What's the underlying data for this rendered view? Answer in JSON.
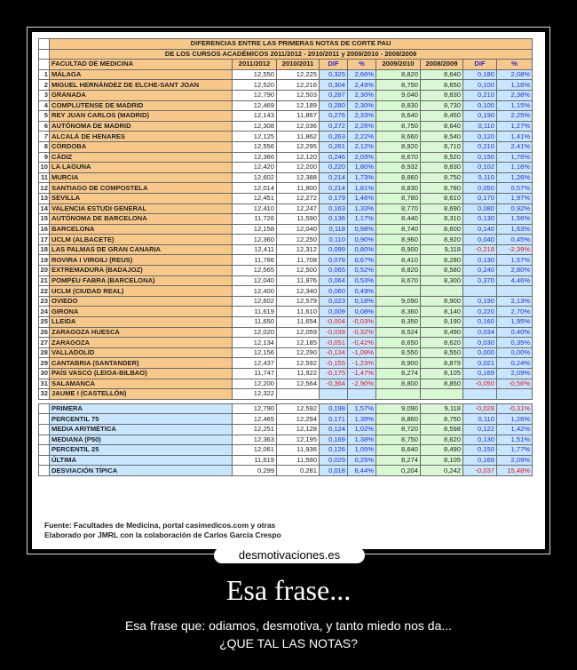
{
  "table": {
    "title_line1": "DIFERENCIAS ENTRE LAS PRIMERAS NOTAS DE CORTE PAU",
    "title_line2": "DE LOS CURSOS ACADÉMICOS  2011/2012 - 2010/2011 y 2009/2010 - 2008/2009",
    "headers": [
      "FACULTAD DE MEDICINA",
      "2011/2012",
      "2010/2011",
      "DIF",
      "%",
      "2009/2010",
      "2008/2009",
      "DIF",
      "%"
    ],
    "rows": [
      [
        "1",
        "MÁLAGA",
        "12,550",
        "12,225",
        "0,325",
        "2,66%",
        "8,820",
        "8,640",
        "0,180",
        "2,08%"
      ],
      [
        "2",
        "MIGUEL HERNÁNDEZ DE ELCHE-SANT JOAN",
        "12,520",
        "12,216",
        "0,304",
        "2,49%",
        "8,750",
        "8,650",
        "0,100",
        "1,16%"
      ],
      [
        "3",
        "GRANADA",
        "12,790",
        "12,503",
        "0,287",
        "2,30%",
        "9,040",
        "8,830",
        "0,210",
        "2,38%"
      ],
      [
        "4",
        "COMPLUTENSE DE MADRID",
        "12,469",
        "12,189",
        "0,280",
        "2,30%",
        "8,830",
        "8,730",
        "0,100",
        "1,15%"
      ],
      [
        "5",
        "REY JUAN CARLOS (MADRID)",
        "12,143",
        "11,867",
        "0,276",
        "2,33%",
        "8,640",
        "8,450",
        "0,190",
        "2,25%"
      ],
      [
        "6",
        "AUTÓNOMA DE MADRID",
        "12,308",
        "12,036",
        "0,272",
        "2,26%",
        "8,750",
        "8,640",
        "0,110",
        "1,27%"
      ],
      [
        "7",
        "ALCALÁ DE HENARES",
        "12,125",
        "11,862",
        "0,263",
        "2,22%",
        "8,660",
        "8,540",
        "0,120",
        "1,41%"
      ],
      [
        "8",
        "CÓRDOBA",
        "12,556",
        "12,295",
        "0,261",
        "2,12%",
        "8,920",
        "8,710",
        "0,210",
        "2,41%"
      ],
      [
        "9",
        "CÁDIZ",
        "12,366",
        "12,120",
        "0,246",
        "2,03%",
        "8,670",
        "8,520",
        "0,150",
        "1,76%"
      ],
      [
        "10",
        "LA LAGUNA",
        "12,420",
        "12,200",
        "0,220",
        "1,80%",
        "8,932",
        "8,830",
        "0,102",
        "1,16%"
      ],
      [
        "11",
        "MURCIA",
        "12,602",
        "12,388",
        "0,214",
        "1,73%",
        "8,860",
        "8,750",
        "0,110",
        "1,26%"
      ],
      [
        "12",
        "SANTIAGO DE COMPOSTELA",
        "12,014",
        "11,800",
        "0,214",
        "1,81%",
        "8,830",
        "8,780",
        "0,050",
        "0,57%"
      ],
      [
        "13",
        "SEVILLA",
        "12,451",
        "12,272",
        "0,179",
        "1,46%",
        "8,780",
        "8,610",
        "0,170",
        "1,97%"
      ],
      [
        "14",
        "VALENCIA ESTUDI GENERAL",
        "12,410",
        "12,247",
        "0,163",
        "1,33%",
        "8,770",
        "8,690",
        "0,080",
        "0,92%"
      ],
      [
        "15",
        "AUTÓNOMA DE BARCELONA",
        "11,726",
        "11,590",
        "0,136",
        "1,17%",
        "8,440",
        "8,310",
        "0,130",
        "1,56%"
      ],
      [
        "16",
        "BARCELONA",
        "12,158",
        "12,040",
        "0,118",
        "0,98%",
        "8,740",
        "8,600",
        "0,140",
        "1,63%"
      ],
      [
        "17",
        "UCLM (ALBACETE)",
        "12,360",
        "12,250",
        "0,110",
        "0,90%",
        "8,960",
        "8,920",
        "0,040",
        "0,45%"
      ],
      [
        "18",
        "LAS PALMAS DE GRAN CANARIA",
        "12,411",
        "12,312",
        "0,099",
        "0,80%",
        "8,900",
        "9,118",
        "-0,218",
        "-2,39%"
      ],
      [
        "19",
        "ROVIRA I VIRGILI (REUS)",
        "11,786",
        "11,708",
        "0,078",
        "0,67%",
        "8,410",
        "8,280",
        "0,130",
        "1,57%"
      ],
      [
        "20",
        "EXTREMADURA (BADAJOZ)",
        "12,565",
        "12,500",
        "0,065",
        "0,52%",
        "8,820",
        "8,580",
        "0,240",
        "2,80%"
      ],
      [
        "21",
        "POMPEU FABRA (BARCELONA)",
        "12,040",
        "11,976",
        "0,064",
        "0,53%",
        "8,670",
        "8,300",
        "0,370",
        "4,46%"
      ],
      [
        "22",
        "UCLM (CIUDAD REAL)",
        "12,400",
        "12,340",
        "0,060",
        "0,49%",
        "",
        "",
        "",
        ""
      ],
      [
        "23",
        "OVIEDO",
        "12,602",
        "12,579",
        "0,023",
        "0,18%",
        "9,090",
        "8,900",
        "0,190",
        "2,13%"
      ],
      [
        "24",
        "GIRONA",
        "11,619",
        "11,610",
        "0,009",
        "0,08%",
        "8,360",
        "8,140",
        "0,220",
        "2,70%"
      ],
      [
        "25",
        "LLEIDA",
        "11,650",
        "11,654",
        "-0,004",
        "-0,03%",
        "8,350",
        "8,190",
        "0,160",
        "1,95%"
      ],
      [
        "26",
        "ZARAGOZA HUESCA",
        "12,020",
        "12,059",
        "-0,039",
        "-0,32%",
        "8,524",
        "8,490",
        "0,034",
        "0,40%"
      ],
      [
        "27",
        "ZARAGOZA",
        "12,134",
        "12,185",
        "-0,051",
        "-0,42%",
        "8,650",
        "8,620",
        "0,030",
        "0,35%"
      ],
      [
        "28",
        "VALLADOLID",
        "12,156",
        "12,290",
        "-0,134",
        "-1,09%",
        "8,550",
        "8,550",
        "0,000",
        "0,00%"
      ],
      [
        "29",
        "CANTABRIA (SANTANDER)",
        "12,437",
        "12,592",
        "-0,155",
        "-1,23%",
        "8,900",
        "8,879",
        "0,021",
        "0,24%"
      ],
      [
        "30",
        "PAÍS VASCO (LEIOA-BILBAO)",
        "11,747",
        "11,922",
        "-0,175",
        "-1,47%",
        "8,274",
        "8,105",
        "0,169",
        "2,09%"
      ],
      [
        "31",
        "SALAMANCA",
        "12,200",
        "12,564",
        "-0,364",
        "-2,90%",
        "8,800",
        "8,850",
        "-0,050",
        "-0,56%"
      ],
      [
        "32",
        "JAUME I (CASTELLÓN)",
        "12,322",
        "",
        "",
        "",
        "",
        "",
        "",
        ""
      ]
    ],
    "stats": [
      [
        "PRIMERA",
        "12,790",
        "12,592",
        "0,198",
        "1,57%",
        "9,090",
        "9,118",
        "-0,028",
        "-0,31%"
      ],
      [
        "PERCENTIL 75",
        "12,465",
        "12,294",
        "0,171",
        "1,39%",
        "8,860",
        "8,750",
        "0,110",
        "1,26%"
      ],
      [
        "MEDIA ARITMÉTICA",
        "12,251",
        "12,128",
        "0,124",
        "1,02%",
        "8,720",
        "8,598",
        "0,122",
        "1,42%"
      ],
      [
        "MEDIANA (P50)",
        "12,363",
        "12,195",
        "0,169",
        "1,38%",
        "8,750",
        "8,620",
        "0,130",
        "1,51%"
      ],
      [
        "PERCENTIL 25",
        "12,061",
        "11,936",
        "0,126",
        "1,05%",
        "8,640",
        "8,490",
        "0,150",
        "1,77%"
      ],
      [
        "ÚLTIMA",
        "11,619",
        "11,590",
        "0,029",
        "0,25%",
        "8,274",
        "8,105",
        "0,169",
        "2,09%"
      ],
      [
        "DESVIACIÓN TÍPICA",
        "0,299",
        "0,281",
        "0,018",
        "6,44%",
        "0,204",
        "0,242",
        "-0,037",
        "15,48%"
      ]
    ]
  },
  "footer": {
    "line1": "Fuente: Facultades de Medicina, portal casimedicos.com y otras",
    "line2": "Elaborado por JMRL con la colaboración de Carlos García Crespo"
  },
  "brand": "desmotivaciones.es",
  "headline": "Esa frase...",
  "caption_line1": "Esa frase que: odiamos, desmotiva, y tanto miedo nos da...",
  "caption_line2": "¿QUE TAL LAS NOTAS?"
}
